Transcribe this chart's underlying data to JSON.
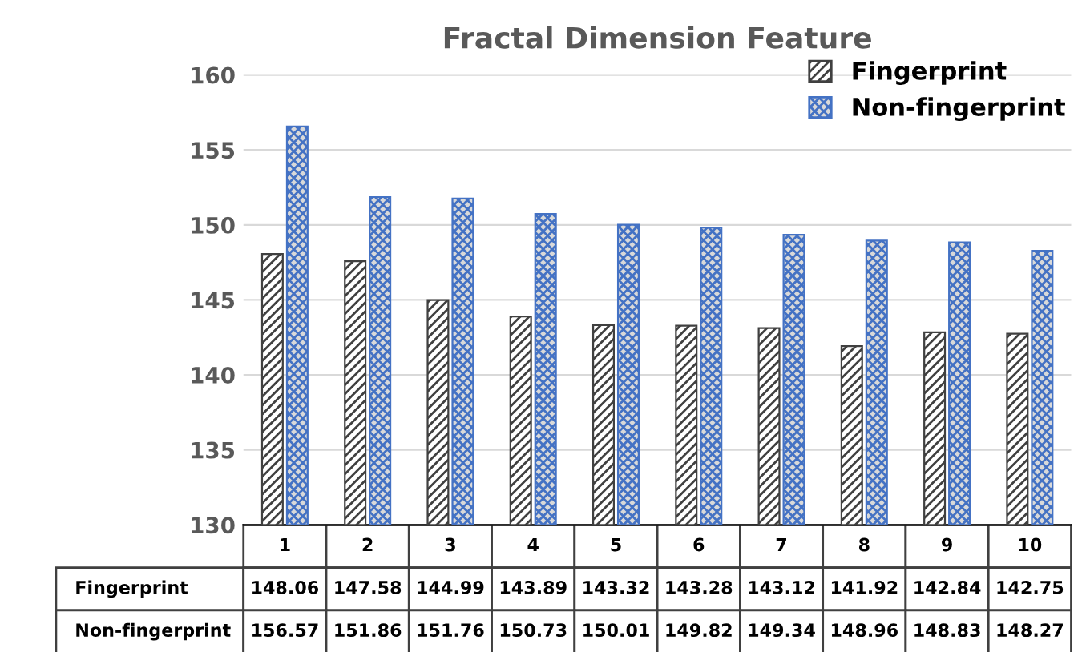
{
  "chart_data": {
    "type": "bar",
    "title": "Fractal Dimension Feature",
    "categories": [
      "1",
      "2",
      "3",
      "4",
      "5",
      "6",
      "7",
      "8",
      "9",
      "10"
    ],
    "series": [
      {
        "name": "Fingerprint",
        "color": "#404040",
        "values": [
          148.06,
          147.58,
          144.99,
          143.89,
          143.32,
          143.28,
          143.12,
          141.92,
          142.84,
          142.75
        ]
      },
      {
        "name": "Non-fingerprint",
        "color": "#4472c4",
        "values": [
          156.57,
          151.86,
          151.76,
          150.73,
          150.01,
          149.82,
          149.34,
          148.96,
          148.83,
          148.27
        ]
      }
    ],
    "ylim": [
      130,
      160
    ],
    "yticks": [
      130,
      135,
      140,
      145,
      150,
      155,
      160
    ],
    "grid": "y",
    "legend": "top right",
    "data_labels": true
  }
}
